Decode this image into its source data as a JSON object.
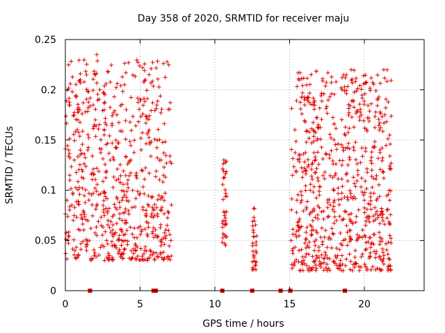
{
  "chart_data": {
    "type": "scatter",
    "title": "Day 358 of 2020, SRMTID for receiver maju",
    "xlabel": "GPS time / hours",
    "ylabel": "SRMTID / TECUs",
    "xlim": [
      0,
      24
    ],
    "ylim": [
      0,
      0.25
    ],
    "x_ticks": [
      0,
      5,
      10,
      15,
      20
    ],
    "x_tick_labels": [
      "0",
      "5",
      "10",
      "15",
      "20"
    ],
    "y_ticks": [
      0,
      0.05,
      0.1,
      0.15,
      0.2,
      0.25
    ],
    "y_tick_labels": [
      "0",
      "0.05",
      "0.1",
      "0.15",
      "0.2",
      "0.25"
    ],
    "grid": true,
    "marker": "plus",
    "color": "#e00000",
    "baseline_markers_x": [
      1.65,
      5.9,
      6.05,
      10.5,
      12.5,
      14.4,
      15.05,
      18.7
    ],
    "series": [
      {
        "name": "SRMTID",
        "clusters": [
          {
            "x_start": 0.0,
            "x_end": 7.1,
            "y_min": 0.03,
            "y_max": 0.23,
            "n": 650
          },
          {
            "x_start": 10.5,
            "x_end": 10.8,
            "y_min": 0.045,
            "y_max": 0.13,
            "n": 35
          },
          {
            "x_start": 12.5,
            "x_end": 12.8,
            "y_min": 0.02,
            "y_max": 0.083,
            "n": 30
          },
          {
            "x_start": 15.1,
            "x_end": 21.8,
            "y_min": 0.02,
            "y_max": 0.22,
            "n": 700
          }
        ],
        "points": [
          [
            0.1,
            0.09
          ],
          [
            0.3,
            0.11
          ],
          [
            0.6,
            0.13
          ],
          [
            1.0,
            0.14
          ],
          [
            1.0,
            0.21
          ],
          [
            1.5,
            0.14
          ],
          [
            2.0,
            0.17
          ],
          [
            2.1,
            0.235
          ],
          [
            2.3,
            0.2
          ],
          [
            2.6,
            0.18
          ],
          [
            2.6,
            0.155
          ],
          [
            3.0,
            0.13
          ],
          [
            3.4,
            0.11
          ],
          [
            3.8,
            0.09
          ],
          [
            4.0,
            0.05
          ],
          [
            4.5,
            0.1
          ],
          [
            5.0,
            0.19
          ],
          [
            5.1,
            0.12
          ],
          [
            5.6,
            0.215
          ],
          [
            5.6,
            0.16
          ],
          [
            5.9,
            0.08
          ],
          [
            6.4,
            0.13
          ],
          [
            6.9,
            0.06
          ],
          [
            10.6,
            0.13
          ],
          [
            10.7,
            0.07
          ],
          [
            12.6,
            0.082
          ],
          [
            12.7,
            0.025
          ],
          [
            15.1,
            0.05
          ],
          [
            15.6,
            0.06
          ],
          [
            16.2,
            0.045
          ],
          [
            16.8,
            0.035
          ],
          [
            17.4,
            0.06
          ],
          [
            18.0,
            0.09
          ],
          [
            18.5,
            0.125
          ],
          [
            19.0,
            0.06
          ],
          [
            19.5,
            0.05
          ],
          [
            20.0,
            0.09
          ],
          [
            20.5,
            0.12
          ],
          [
            21.0,
            0.16
          ],
          [
            21.3,
            0.22
          ],
          [
            21.7,
            0.09
          ],
          [
            21.7,
            0.055
          ]
        ]
      }
    ]
  }
}
